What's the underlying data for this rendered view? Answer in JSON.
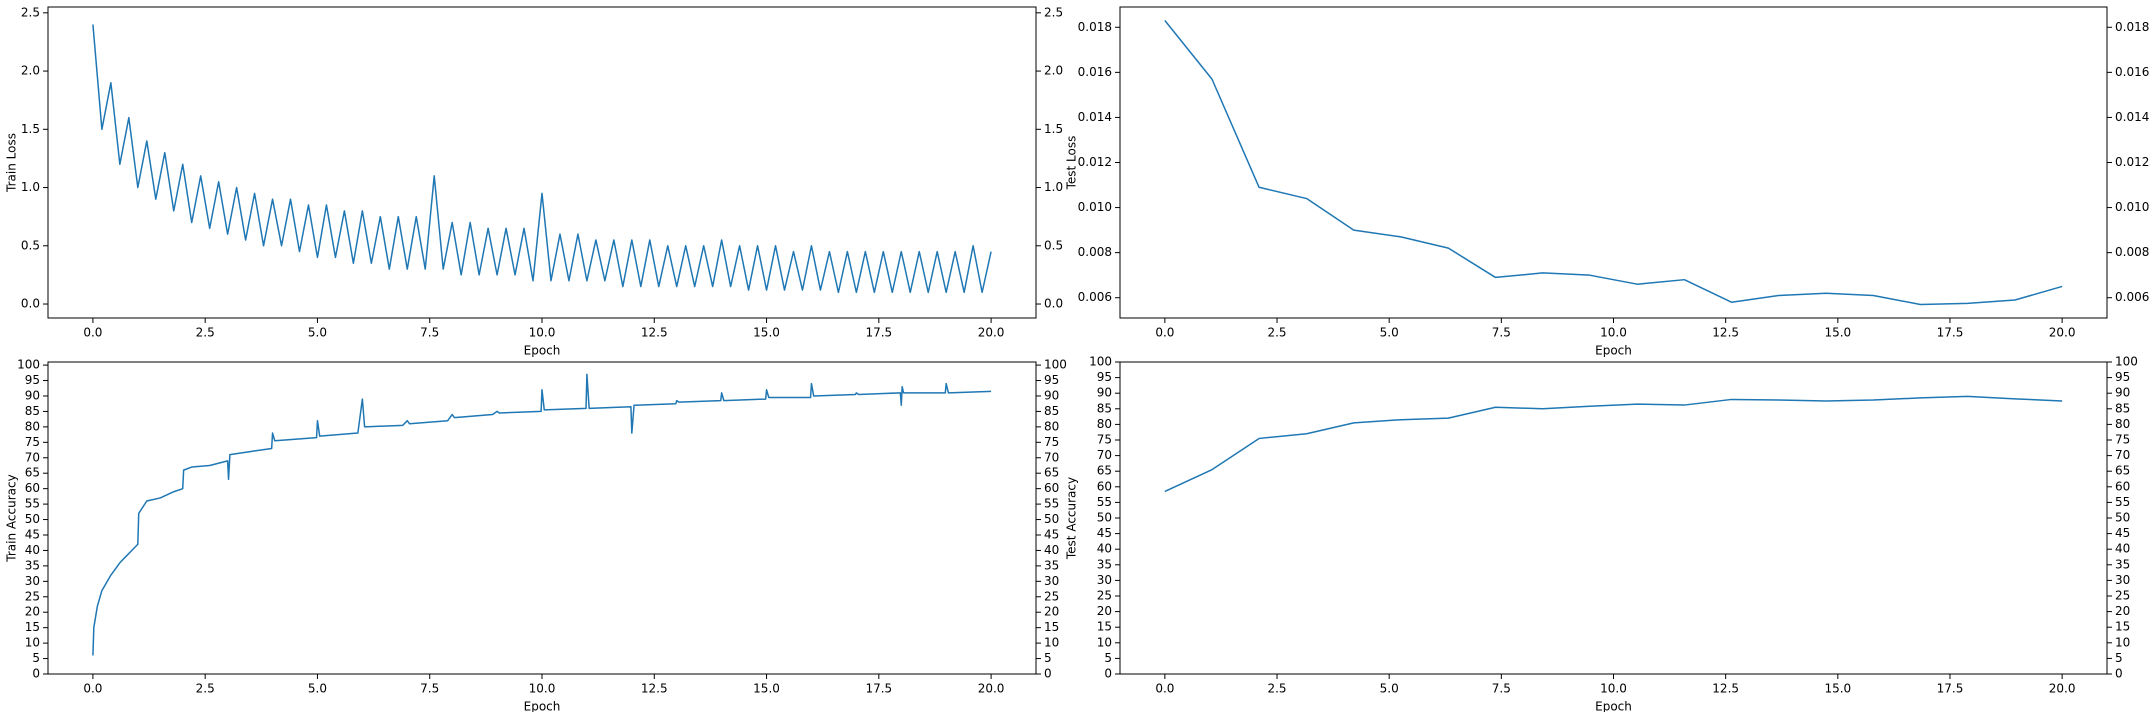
{
  "chart_data": [
    {
      "type": "line",
      "xlabel": "Epoch",
      "ylabel": "Train Loss",
      "color": "#1f77b4",
      "x": [
        0,
        0.2,
        0.4,
        0.6,
        0.8,
        1,
        1.2,
        1.4,
        1.6,
        1.8,
        2,
        2.2,
        2.4,
        2.6,
        2.8,
        3,
        3.2,
        3.4,
        3.6,
        3.8,
        4,
        4.2,
        4.4,
        4.6,
        4.8,
        5,
        5.2,
        5.4,
        5.6,
        5.8,
        6,
        6.2,
        6.4,
        6.6,
        6.8,
        7,
        7.2,
        7.4,
        7.6,
        7.8,
        8,
        8.2,
        8.4,
        8.6,
        8.8,
        9,
        9.2,
        9.4,
        9.6,
        9.8,
        10,
        10.2,
        10.4,
        10.6,
        10.8,
        11,
        11.2,
        11.4,
        11.6,
        11.8,
        12,
        12.2,
        12.4,
        12.6,
        12.8,
        13,
        13.2,
        13.4,
        13.6,
        13.8,
        14,
        14.2,
        14.4,
        14.6,
        14.8,
        15,
        15.2,
        15.4,
        15.6,
        15.8,
        16,
        16.2,
        16.4,
        16.6,
        16.8,
        17,
        17.2,
        17.4,
        17.6,
        17.8,
        18,
        18.2,
        18.4,
        18.6,
        18.8,
        19,
        19.2,
        19.4,
        19.6,
        19.8,
        20
      ],
      "values": [
        2.4,
        1.5,
        1.9,
        1.2,
        1.6,
        1.0,
        1.4,
        0.9,
        1.3,
        0.8,
        1.2,
        0.7,
        1.1,
        0.65,
        1.05,
        0.6,
        1.0,
        0.55,
        0.95,
        0.5,
        0.9,
        0.5,
        0.9,
        0.45,
        0.85,
        0.4,
        0.85,
        0.4,
        0.8,
        0.35,
        0.8,
        0.35,
        0.75,
        0.3,
        0.75,
        0.3,
        0.75,
        0.3,
        1.1,
        0.3,
        0.7,
        0.25,
        0.7,
        0.25,
        0.65,
        0.25,
        0.65,
        0.25,
        0.65,
        0.2,
        0.95,
        0.2,
        0.6,
        0.2,
        0.6,
        0.2,
        0.55,
        0.2,
        0.55,
        0.15,
        0.55,
        0.15,
        0.55,
        0.15,
        0.5,
        0.15,
        0.5,
        0.15,
        0.5,
        0.15,
        0.55,
        0.15,
        0.5,
        0.12,
        0.5,
        0.12,
        0.5,
        0.12,
        0.45,
        0.12,
        0.5,
        0.12,
        0.45,
        0.1,
        0.45,
        0.1,
        0.45,
        0.1,
        0.45,
        0.1,
        0.45,
        0.1,
        0.45,
        0.1,
        0.45,
        0.1,
        0.45,
        0.1,
        0.5,
        0.1,
        0.45
      ],
      "xlim": [
        -1,
        21
      ],
      "xticks": [
        {
          "value": 0,
          "label": "0.0"
        },
        2.5,
        {
          "value": 5,
          "label": "5.0"
        },
        7.5,
        {
          "value": 10,
          "label": "10.0"
        },
        12.5,
        {
          "value": 15,
          "label": "15.0"
        },
        17.5,
        {
          "value": 20,
          "label": "20.0"
        }
      ],
      "ylim": [
        -0.12,
        2.55
      ],
      "yticks": [
        {
          "value": 0,
          "label": "0.0"
        },
        0.5,
        {
          "value": 1,
          "label": "1.0"
        },
        1.5,
        {
          "value": 2,
          "label": "2.0"
        },
        2.5
      ],
      "y2lim": [
        -0.12,
        2.55
      ],
      "y2ticks": [
        {
          "value": 0,
          "label": "0.0"
        },
        0.5,
        {
          "value": 1,
          "label": "1.0"
        },
        1.5,
        {
          "value": 2,
          "label": "2.0"
        },
        2.5
      ]
    },
    {
      "type": "line",
      "xlabel": "Epoch",
      "ylabel": "Test Loss",
      "color": "#1f77b4",
      "x": [
        0,
        1.05,
        2.1,
        3.16,
        4.21,
        5.26,
        6.32,
        7.37,
        8.42,
        9.47,
        10.53,
        11.58,
        12.63,
        13.68,
        14.74,
        15.79,
        16.84,
        17.89,
        18.95,
        20
      ],
      "values": [
        0.0183,
        0.0157,
        0.0109,
        0.0104,
        0.009,
        0.0087,
        0.0082,
        0.0069,
        0.0071,
        0.007,
        0.0066,
        0.0068,
        0.0058,
        0.0061,
        0.0062,
        0.0061,
        0.0057,
        0.00575,
        0.0059,
        0.0065
      ],
      "xlim": [
        -1,
        21
      ],
      "xticks": [
        {
          "value": 0,
          "label": "0.0"
        },
        2.5,
        {
          "value": 5,
          "label": "5.0"
        },
        7.5,
        {
          "value": 10,
          "label": "10.0"
        },
        12.5,
        {
          "value": 15,
          "label": "15.0"
        },
        17.5,
        {
          "value": 20,
          "label": "20.0"
        }
      ],
      "ylim": [
        0.0051,
        0.0189
      ],
      "yticks": [
        0.006,
        0.008,
        {
          "value": 0.01,
          "label": "0.010"
        },
        0.012,
        0.014,
        0.016,
        0.018
      ],
      "y2lim": [
        0.0051,
        0.0189
      ],
      "y2ticks": [
        0.006,
        0.008,
        {
          "value": 0.01,
          "label": "0.010"
        },
        0.012,
        0.014,
        0.016,
        0.018
      ]
    },
    {
      "type": "line",
      "xlabel": "Epoch",
      "ylabel": "Train Accuracy",
      "color": "#1f77b4",
      "x": [
        0,
        0.02,
        0.1,
        0.2,
        0.4,
        0.6,
        0.8,
        1,
        1.02,
        1.2,
        1.5,
        1.8,
        2,
        2.02,
        2.2,
        2.6,
        3,
        3.02,
        3.05,
        3.5,
        3.98,
        4,
        4.05,
        4.5,
        4.98,
        5,
        5.05,
        5.9,
        6,
        6.05,
        6.9,
        7,
        7.05,
        7.9,
        8,
        8.05,
        8.9,
        9,
        9.05,
        9.98,
        10,
        10.05,
        10.98,
        11,
        11.05,
        11.98,
        12,
        12.05,
        12.98,
        13,
        13.05,
        13.98,
        14,
        14.05,
        14.98,
        15,
        15.05,
        15.98,
        16,
        16.05,
        16.98,
        17,
        17.05,
        17.98,
        18,
        18.02,
        18.05,
        18.98,
        19,
        19.05,
        20
      ],
      "values": [
        6,
        15,
        22,
        27,
        32,
        36,
        39,
        42,
        52,
        56,
        57,
        59,
        60,
        66,
        67,
        67.5,
        69,
        63,
        71,
        72,
        73,
        78,
        75.5,
        76,
        76.5,
        82,
        77,
        78,
        89,
        80,
        80.5,
        82,
        81,
        82,
        84,
        83,
        84,
        85,
        84.5,
        85,
        92,
        85.5,
        86,
        97,
        86,
        86.5,
        78,
        87,
        87.5,
        88.5,
        88,
        88.5,
        91,
        88.5,
        89,
        92,
        89.5,
        89.5,
        94,
        90,
        90.5,
        91,
        90.5,
        91,
        87,
        93,
        91,
        91,
        94,
        91,
        91.5
      ],
      "xlim": [
        -1,
        21
      ],
      "xticks": [
        {
          "value": 0,
          "label": "0.0"
        },
        2.5,
        {
          "value": 5,
          "label": "5.0"
        },
        7.5,
        {
          "value": 10,
          "label": "10.0"
        },
        12.5,
        {
          "value": 15,
          "label": "15.0"
        },
        17.5,
        {
          "value": 20,
          "label": "20.0"
        }
      ],
      "ylim": [
        0,
        101
      ],
      "yticks": [
        0,
        5,
        10,
        15,
        20,
        25,
        30,
        35,
        40,
        45,
        50,
        55,
        60,
        65,
        70,
        75,
        80,
        85,
        90,
        95,
        100
      ],
      "y2lim": [
        0,
        101
      ],
      "y2ticks": [
        0,
        5,
        10,
        15,
        20,
        25,
        30,
        35,
        40,
        45,
        50,
        55,
        60,
        65,
        70,
        75,
        80,
        85,
        90,
        95,
        100
      ]
    },
    {
      "type": "line",
      "xlabel": "Epoch",
      "ylabel": "Test Accuracy",
      "color": "#1f77b4",
      "x": [
        0,
        1.05,
        2.1,
        3.16,
        4.21,
        5.26,
        6.32,
        7.37,
        8.42,
        9.47,
        10.53,
        11.58,
        12.63,
        13.68,
        14.74,
        15.79,
        16.84,
        17.89,
        18.95,
        20
      ],
      "values": [
        58.5,
        65.5,
        75.5,
        77,
        80.5,
        81.5,
        82,
        85.5,
        85,
        85.8,
        86.5,
        86.2,
        88,
        87.8,
        87.5,
        87.8,
        88.5,
        89,
        88.2,
        87.5
      ],
      "xlim": [
        -1,
        21
      ],
      "xticks": [
        {
          "value": 0,
          "label": "0.0"
        },
        2.5,
        {
          "value": 5,
          "label": "5.0"
        },
        7.5,
        {
          "value": 10,
          "label": "10.0"
        },
        12.5,
        {
          "value": 15,
          "label": "15.0"
        },
        17.5,
        {
          "value": 20,
          "label": "20.0"
        }
      ],
      "ylim": [
        0,
        100
      ],
      "yticks": [
        0,
        5,
        10,
        15,
        20,
        25,
        30,
        35,
        40,
        45,
        50,
        55,
        60,
        65,
        70,
        75,
        80,
        85,
        90,
        95,
        100
      ],
      "y2lim": [
        0,
        100
      ],
      "y2ticks": [
        0,
        5,
        10,
        15,
        20,
        25,
        30,
        35,
        40,
        45,
        50,
        55,
        60,
        65,
        70,
        75,
        80,
        85,
        90,
        95,
        100
      ]
    }
  ]
}
